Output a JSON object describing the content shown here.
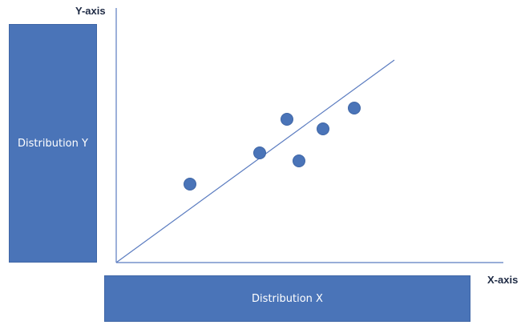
{
  "distributions": {
    "y_label": "Distribution Y",
    "x_label": "Distribution X"
  },
  "axes": {
    "y_label": "Y-axis",
    "x_label": "X-axis"
  },
  "colors": {
    "box_fill": "#4a74b8",
    "point_fill": "#4a74b8",
    "axis_line": "#5b7cc0"
  },
  "chart_data": {
    "type": "scatter",
    "title": "",
    "xlabel": "X-axis",
    "ylabel": "Y-axis",
    "grid": false,
    "points": [
      {
        "x": 92,
        "y": 98
      },
      {
        "x": 179,
        "y": 137
      },
      {
        "x": 213,
        "y": 179
      },
      {
        "x": 228,
        "y": 127
      },
      {
        "x": 258,
        "y": 167
      },
      {
        "x": 297,
        "y": 193
      }
    ],
    "trend_line": {
      "x": [
        0,
        347
      ],
      "y": [
        0,
        253
      ]
    },
    "xlim": [
      0,
      483
    ],
    "ylim": [
      0,
      318
    ]
  }
}
